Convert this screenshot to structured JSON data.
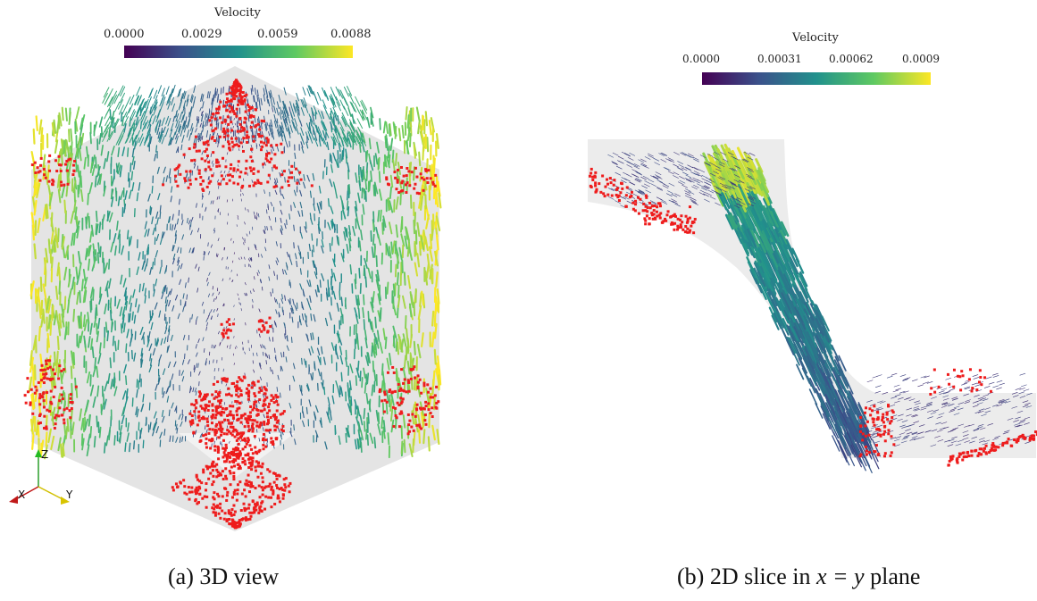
{
  "panel_a": {
    "legend_title": "Velocity",
    "ticks": [
      "0.0000",
      "0.0029",
      "0.0059",
      "0.0088"
    ],
    "caption": "(a) 3D view",
    "axes": {
      "z": "Z",
      "x": "X",
      "y": "Y"
    }
  },
  "panel_b": {
    "legend_title": "Velocity",
    "ticks": [
      "0.0000",
      "0.00031",
      "0.00062",
      "0.0009"
    ],
    "caption_prefix": "(b) 2D slice in ",
    "caption_math": "x = y",
    "caption_suffix": " plane"
  },
  "colors": {
    "particles": "#ee1c1c",
    "domain": "#e2e2e2",
    "colormap": [
      "#440154",
      "#3b528b",
      "#21918c",
      "#5ec962",
      "#fde725"
    ]
  }
}
